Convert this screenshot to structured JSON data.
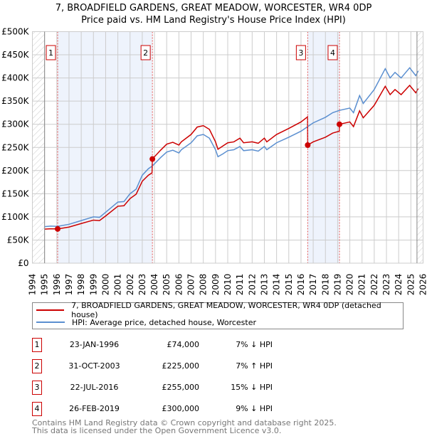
{
  "chart_data": {
    "type": "line",
    "title": "7, BROADFIELD GARDENS, GREAT MEADOW, WORCESTER, WR4 0DP",
    "subtitle": "Price paid vs. HM Land Registry's House Price Index (HPI)",
    "xlim": [
      1994,
      2026
    ],
    "ylim": [
      0,
      500000
    ],
    "x_ticks": [
      "1994",
      "1995",
      "1996",
      "1997",
      "1998",
      "1999",
      "2000",
      "2001",
      "2002",
      "2003",
      "2004",
      "2005",
      "2006",
      "2007",
      "2008",
      "2009",
      "2010",
      "2011",
      "2012",
      "2013",
      "2014",
      "2015",
      "2016",
      "2017",
      "2018",
      "2019",
      "2020",
      "2021",
      "2022",
      "2023",
      "2024",
      "2025",
      "2026"
    ],
    "y_ticks": [
      {
        "v": 0,
        "label": "£0"
      },
      {
        "v": 50000,
        "label": "£50K"
      },
      {
        "v": 100000,
        "label": "£100K"
      },
      {
        "v": 150000,
        "label": "£150K"
      },
      {
        "v": 200000,
        "label": "£200K"
      },
      {
        "v": 250000,
        "label": "£250K"
      },
      {
        "v": 300000,
        "label": "£300K"
      },
      {
        "v": 350000,
        "label": "£350K"
      },
      {
        "v": 400000,
        "label": "£400K"
      },
      {
        "v": 450000,
        "label": "£450K"
      },
      {
        "v": 500000,
        "label": "£500K"
      }
    ],
    "grid": true,
    "data_range": [
      1995,
      2025.5
    ],
    "colors": {
      "property": "#cc0000",
      "hpi": "#5b8fd0",
      "shade": "#eef3fc"
    },
    "series": [
      {
        "name": "7, BROADFIELD GARDENS, GREAT MEADOW, WORCESTER, WR4 0DP (detached house)",
        "key": "property",
        "points": [
          [
            1995,
            73.5
          ],
          [
            1995.5,
            74.4
          ],
          [
            1996.07,
            74
          ],
          [
            1997,
            78
          ],
          [
            1998,
            85.6
          ],
          [
            1999,
            93
          ],
          [
            1999.5,
            92
          ],
          [
            2000,
            102
          ],
          [
            2001,
            123
          ],
          [
            2001.5,
            124
          ],
          [
            2002,
            139.5
          ],
          [
            2002.5,
            149
          ],
          [
            2003,
            177
          ],
          [
            2003.5,
            190
          ],
          [
            2003.8,
            195
          ],
          [
            2003.83,
            225
          ],
          [
            2004.5,
            244
          ],
          [
            2005,
            257
          ],
          [
            2005.5,
            261
          ],
          [
            2006,
            255
          ],
          [
            2006.2,
            262
          ],
          [
            2007,
            278
          ],
          [
            2007.5,
            294
          ],
          [
            2008,
            297
          ],
          [
            2008.5,
            289
          ],
          [
            2009,
            262
          ],
          [
            2009.2,
            246
          ],
          [
            2009.6,
            253
          ],
          [
            2010,
            260
          ],
          [
            2010.5,
            262
          ],
          [
            2011,
            270
          ],
          [
            2011.3,
            260
          ],
          [
            2012,
            262
          ],
          [
            2012.5,
            259
          ],
          [
            2013,
            270
          ],
          [
            2013.2,
            262
          ],
          [
            2014,
            278
          ],
          [
            2015,
            291
          ],
          [
            2016,
            305
          ],
          [
            2016.54,
            316
          ],
          [
            2016.55,
            255
          ],
          [
            2017,
            262
          ],
          [
            2018,
            272
          ],
          [
            2018.6,
            281
          ],
          [
            2019.14,
            285
          ],
          [
            2019.15,
            300
          ],
          [
            2020,
            305
          ],
          [
            2020.3,
            295
          ],
          [
            2020.8,
            329
          ],
          [
            2021.1,
            314
          ],
          [
            2022,
            341
          ],
          [
            2022.9,
            382
          ],
          [
            2023.3,
            364
          ],
          [
            2023.7,
            375
          ],
          [
            2024.2,
            364
          ],
          [
            2024.9,
            384
          ],
          [
            2025.4,
            368
          ],
          [
            2025.6,
            377
          ]
        ]
      },
      {
        "name": "HPI: Average price, detached house, Worcester",
        "key": "hpi",
        "points": [
          [
            1995,
            79
          ],
          [
            1995.5,
            80
          ],
          [
            1996.07,
            79.5
          ],
          [
            1997,
            84
          ],
          [
            1998,
            92
          ],
          [
            1999,
            100
          ],
          [
            1999.5,
            99
          ],
          [
            2000,
            110
          ],
          [
            2001,
            132
          ],
          [
            2001.5,
            133
          ],
          [
            2002,
            150
          ],
          [
            2002.5,
            160
          ],
          [
            2003,
            190
          ],
          [
            2003.5,
            204
          ],
          [
            2003.83,
            210
          ],
          [
            2004.5,
            228
          ],
          [
            2005,
            240
          ],
          [
            2005.5,
            244
          ],
          [
            2006,
            238
          ],
          [
            2006.2,
            245
          ],
          [
            2007,
            260
          ],
          [
            2007.5,
            275
          ],
          [
            2008,
            278
          ],
          [
            2008.5,
            270
          ],
          [
            2009,
            245
          ],
          [
            2009.2,
            230
          ],
          [
            2009.6,
            236
          ],
          [
            2010,
            243
          ],
          [
            2010.5,
            245
          ],
          [
            2011,
            252
          ],
          [
            2011.3,
            243
          ],
          [
            2012,
            245
          ],
          [
            2012.5,
            242
          ],
          [
            2013,
            252
          ],
          [
            2013.2,
            245
          ],
          [
            2014,
            260
          ],
          [
            2015,
            272
          ],
          [
            2016,
            285
          ],
          [
            2016.55,
            295
          ],
          [
            2017,
            303
          ],
          [
            2018,
            315
          ],
          [
            2018.6,
            325
          ],
          [
            2019.15,
            330
          ],
          [
            2020,
            335
          ],
          [
            2020.3,
            325
          ],
          [
            2020.8,
            362
          ],
          [
            2021.1,
            345
          ],
          [
            2022,
            375
          ],
          [
            2022.9,
            420
          ],
          [
            2023.3,
            400
          ],
          [
            2023.7,
            412
          ],
          [
            2024.2,
            400
          ],
          [
            2024.9,
            422
          ],
          [
            2025.4,
            405
          ],
          [
            2025.6,
            415
          ]
        ]
      }
    ],
    "point_units": "thousands GBP",
    "sales": [
      {
        "n": "1",
        "x": 1996.07,
        "y": 74000,
        "date": "23-JAN-1996",
        "price": "£74,000",
        "hpi": "7% ↓ HPI"
      },
      {
        "n": "2",
        "x": 2003.83,
        "y": 225000,
        "date": "31-OCT-2003",
        "price": "£225,000",
        "hpi": "7% ↑ HPI"
      },
      {
        "n": "3",
        "x": 2016.55,
        "y": 255000,
        "date": "22-JUL-2016",
        "price": "£255,000",
        "hpi": "15% ↓ HPI"
      },
      {
        "n": "4",
        "x": 2019.15,
        "y": 300000,
        "date": "26-FEB-2019",
        "price": "£300,000",
        "hpi": "9% ↓ HPI"
      }
    ]
  },
  "title_line1": "7, BROADFIELD GARDENS, GREAT MEADOW, WORCESTER, WR4 0DP",
  "title_line2": "Price paid vs. HM Land Registry's House Price Index (HPI)",
  "legend": {
    "property": "7, BROADFIELD GARDENS, GREAT MEADOW, WORCESTER, WR4 0DP (detached house)",
    "hpi": "HPI: Average price, detached house, Worcester"
  },
  "footer": {
    "line1": "Contains HM Land Registry data © Crown copyright and database right 2025.",
    "line2": "This data is licensed under the Open Government Licence v3.0."
  }
}
